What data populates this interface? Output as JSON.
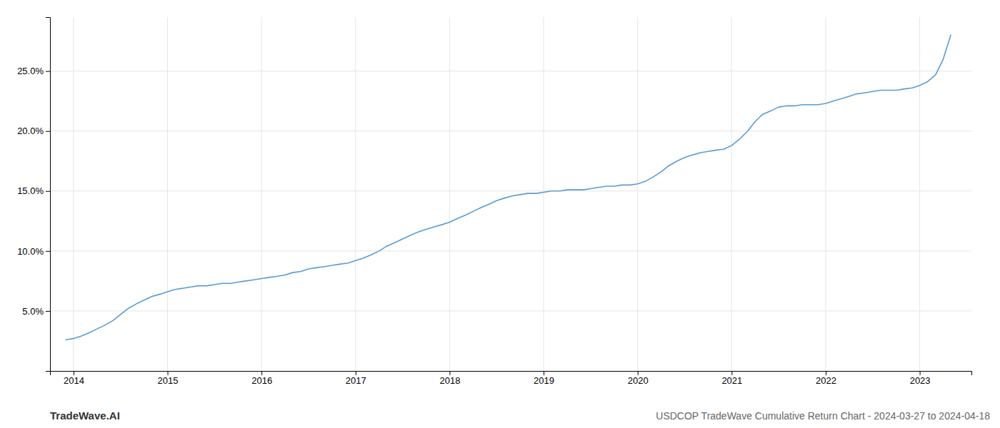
{
  "chart_data": {
    "type": "line",
    "title": "USDCOP TradeWave Cumulative Return Chart - 2024-03-27 to 2024-04-18",
    "annotations": [
      "TradeWave.AI"
    ],
    "color": "#5b9bd5",
    "grid": true,
    "x": [
      2013.92,
      2014.0,
      2014.08,
      2014.17,
      2014.25,
      2014.33,
      2014.42,
      2014.5,
      2014.58,
      2014.67,
      2014.75,
      2014.83,
      2014.92,
      2015.0,
      2015.08,
      2015.17,
      2015.25,
      2015.33,
      2015.42,
      2015.5,
      2015.58,
      2015.67,
      2015.75,
      2015.83,
      2015.92,
      2016.0,
      2016.08,
      2016.17,
      2016.25,
      2016.33,
      2016.42,
      2016.5,
      2016.58,
      2016.67,
      2016.75,
      2016.83,
      2016.92,
      2017.0,
      2017.08,
      2017.17,
      2017.25,
      2017.33,
      2017.42,
      2017.5,
      2017.58,
      2017.67,
      2017.75,
      2017.83,
      2017.92,
      2018.0,
      2018.08,
      2018.17,
      2018.25,
      2018.33,
      2018.42,
      2018.5,
      2018.58,
      2018.67,
      2018.75,
      2018.83,
      2018.92,
      2019.0,
      2019.08,
      2019.17,
      2019.25,
      2019.33,
      2019.42,
      2019.5,
      2019.58,
      2019.67,
      2019.75,
      2019.83,
      2019.92,
      2020.0,
      2020.08,
      2020.17,
      2020.25,
      2020.33,
      2020.42,
      2020.5,
      2020.58,
      2020.67,
      2020.75,
      2020.83,
      2020.92,
      2021.0,
      2021.08,
      2021.17,
      2021.25,
      2021.33,
      2021.42,
      2021.5,
      2021.58,
      2021.67,
      2021.75,
      2021.83,
      2021.92,
      2022.0,
      2022.08,
      2022.17,
      2022.25,
      2022.33,
      2022.42,
      2022.5,
      2022.58,
      2022.67,
      2022.75,
      2022.83,
      2022.92,
      2023.0,
      2023.08,
      2023.17,
      2023.25,
      2023.33
    ],
    "values": [
      0.026,
      0.027,
      0.029,
      0.032,
      0.035,
      0.038,
      0.042,
      0.047,
      0.052,
      0.056,
      0.059,
      0.062,
      0.064,
      0.066,
      0.068,
      0.069,
      0.07,
      0.071,
      0.071,
      0.072,
      0.073,
      0.073,
      0.074,
      0.075,
      0.076,
      0.077,
      0.078,
      0.079,
      0.08,
      0.082,
      0.083,
      0.085,
      0.086,
      0.087,
      0.088,
      0.089,
      0.09,
      0.092,
      0.094,
      0.097,
      0.1,
      0.104,
      0.107,
      0.11,
      0.113,
      0.116,
      0.118,
      0.12,
      0.122,
      0.124,
      0.127,
      0.13,
      0.133,
      0.136,
      0.139,
      0.142,
      0.144,
      0.146,
      0.147,
      0.148,
      0.148,
      0.149,
      0.15,
      0.15,
      0.151,
      0.151,
      0.151,
      0.152,
      0.153,
      0.154,
      0.154,
      0.155,
      0.155,
      0.156,
      0.158,
      0.162,
      0.166,
      0.171,
      0.175,
      0.178,
      0.18,
      0.182,
      0.183,
      0.184,
      0.185,
      0.188,
      0.193,
      0.2,
      0.208,
      0.214,
      0.217,
      0.22,
      0.221,
      0.221,
      0.222,
      0.222,
      0.222,
      0.223,
      0.225,
      0.227,
      0.229,
      0.231,
      0.232,
      0.233,
      0.234,
      0.234,
      0.234,
      0.235,
      0.236,
      0.238,
      0.241,
      0.247,
      0.26,
      0.28
    ],
    "xlim": [
      2013.75,
      2023.55
    ],
    "ylim": [
      0.0,
      0.295
    ],
    "xticks": [
      2014,
      2015,
      2016,
      2017,
      2018,
      2019,
      2020,
      2021,
      2022,
      2023
    ],
    "yticks": [
      {
        "value": 0.05,
        "label": "5.0%"
      },
      {
        "value": 0.1,
        "label": "10.0%"
      },
      {
        "value": 0.15,
        "label": "15.0%"
      },
      {
        "value": 0.2,
        "label": "20.0%"
      },
      {
        "value": 0.25,
        "label": "25.0%"
      }
    ]
  }
}
